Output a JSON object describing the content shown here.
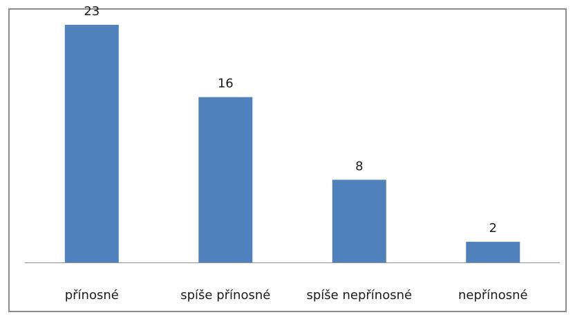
{
  "chart_data": {
    "type": "bar",
    "categories": [
      "přínosné",
      "spíše přínosné",
      "spíše nepřínosné",
      "nepřínosné"
    ],
    "values": [
      23,
      16,
      8,
      2
    ],
    "ylim": [
      0,
      25
    ],
    "grid": false,
    "legend": "none",
    "data_labels": true,
    "bar_color": "#4f81bd",
    "axis_color": "#8c8c8c"
  }
}
